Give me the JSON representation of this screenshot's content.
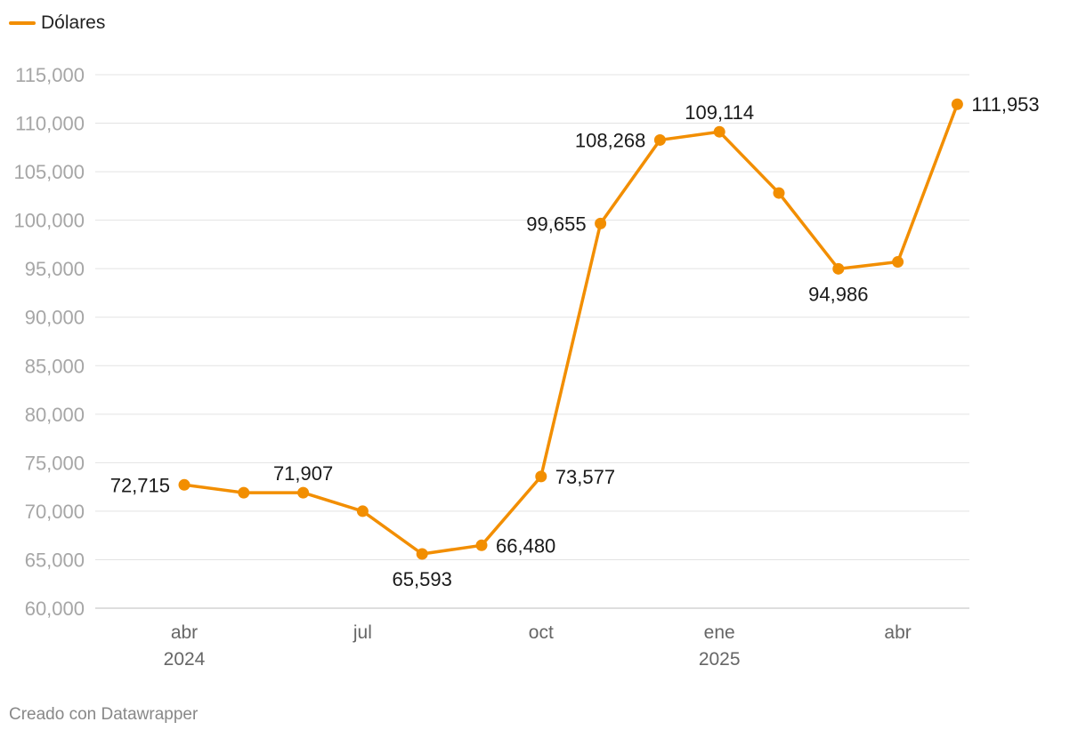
{
  "legend": {
    "label": "Dólares"
  },
  "credit": "Creado con Datawrapper",
  "colors": {
    "series": "#f28e00",
    "grid": "#e3e3e3"
  },
  "chart_data": {
    "type": "line",
    "title": "",
    "xlabel": "",
    "ylabel": "",
    "ylim": [
      60000,
      115000
    ],
    "yticks": [
      60000,
      65000,
      70000,
      75000,
      80000,
      85000,
      90000,
      95000,
      100000,
      105000,
      110000,
      115000
    ],
    "ytick_labels": [
      "60,000",
      "65,000",
      "70,000",
      "75,000",
      "80,000",
      "85,000",
      "90,000",
      "95,000",
      "100,000",
      "105,000",
      "110,000",
      "115,000"
    ],
    "x": [
      "2024-04",
      "2024-05",
      "2024-06",
      "2024-07",
      "2024-08",
      "2024-09",
      "2024-10",
      "2024-11",
      "2024-12",
      "2025-01",
      "2025-02",
      "2025-03",
      "2025-04",
      "2025-05"
    ],
    "xticks": [
      {
        "index": 0,
        "label": "abr",
        "year": "2024"
      },
      {
        "index": 3,
        "label": "jul",
        "year": ""
      },
      {
        "index": 6,
        "label": "oct",
        "year": ""
      },
      {
        "index": 9,
        "label": "ene",
        "year": "2025"
      },
      {
        "index": 12,
        "label": "abr",
        "year": ""
      }
    ],
    "series": [
      {
        "name": "Dólares",
        "values": [
          72715,
          71907,
          71907,
          70000,
          65593,
          66480,
          73577,
          99655,
          108268,
          109114,
          102800,
          94986,
          95700,
          111953
        ]
      }
    ],
    "data_labels": [
      {
        "index": 0,
        "text": "72,715",
        "pos": "left"
      },
      {
        "index": 2,
        "text": "71,907",
        "pos": "above"
      },
      {
        "index": 4,
        "text": "65,593",
        "pos": "below"
      },
      {
        "index": 5,
        "text": "66,480",
        "pos": "right"
      },
      {
        "index": 6,
        "text": "73,577",
        "pos": "right"
      },
      {
        "index": 7,
        "text": "99,655",
        "pos": "left"
      },
      {
        "index": 8,
        "text": "108,268",
        "pos": "left"
      },
      {
        "index": 9,
        "text": "109,114",
        "pos": "above"
      },
      {
        "index": 11,
        "text": "94,986",
        "pos": "below"
      },
      {
        "index": 13,
        "text": "111,953",
        "pos": "right"
      }
    ],
    "legend_position": "top-left"
  }
}
